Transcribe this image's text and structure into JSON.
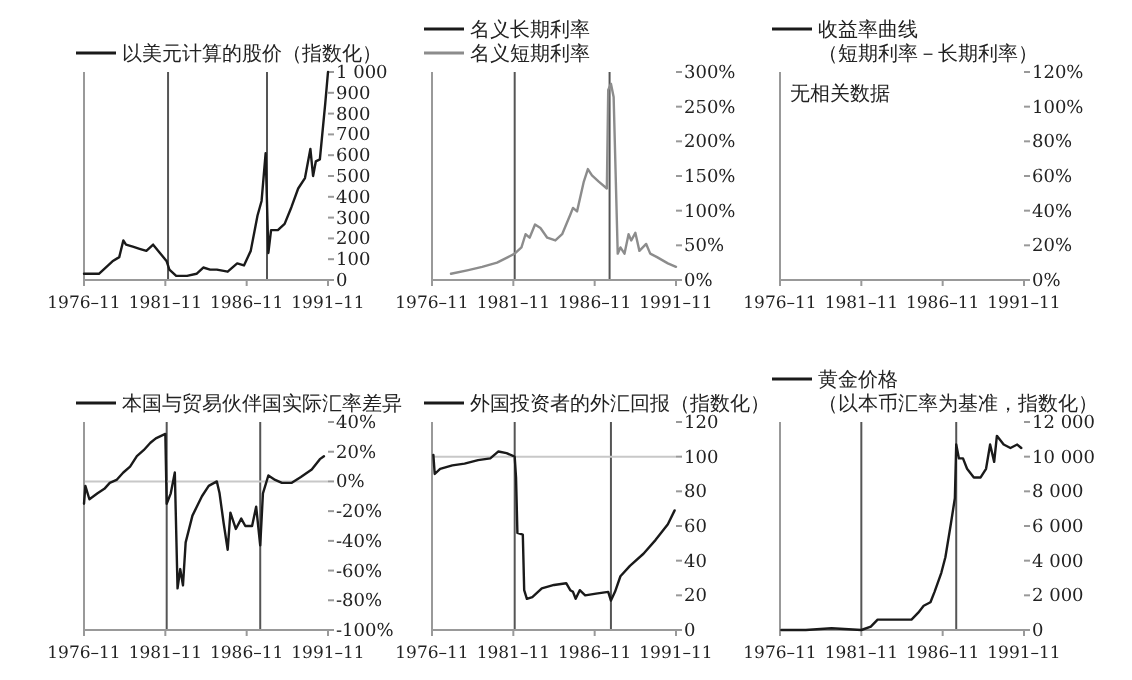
{
  "chart_data": [
    {
      "type": "line",
      "legend": "top",
      "xlim": [
        "1976-11",
        "1991-11"
      ],
      "xticks": [
        {
          "value": "1976-11",
          "label": "1976–11"
        },
        {
          "value": "1981-11",
          "label": "1981–11"
        },
        {
          "value": "1986-11",
          "label": "1986–11"
        },
        {
          "value": "1991-11",
          "label": "1991–11"
        }
      ],
      "ylim": [
        0,
        1000
      ],
      "yticks": [
        0,
        100,
        200,
        300,
        400,
        500,
        600,
        700,
        800,
        900,
        {
          "value": 1000,
          "label": "1 000"
        }
      ],
      "x": [
        "1976-11",
        "1977-10",
        "1978-03",
        "1978-08",
        "1979-01",
        "1979-04",
        "1979-06",
        "1979-11",
        "1980-04",
        "1980-09",
        "1981-02",
        "1981-07",
        "1981-12",
        "1982-02",
        "1982-07",
        "1983-03",
        "1983-10",
        "1984-03",
        "1984-08",
        "1985-01",
        "1985-09",
        "1986-04",
        "1986-09",
        "1987-02",
        "1987-07",
        "1987-10",
        "1988-01",
        "1988-03",
        "1988-05",
        "1988-10",
        "1989-03",
        "1989-08",
        "1990-01",
        "1990-06",
        "1990-10",
        "1990-12",
        "1991-02",
        "1991-05",
        "1991-09",
        "1991-11"
      ],
      "series": [
        {
          "name": "以美元计算的股价（指数化）",
          "color": "#1a1a1a",
          "values": [
            30,
            30,
            60,
            90,
            110,
            190,
            170,
            160,
            150,
            140,
            170,
            130,
            90,
            50,
            20,
            20,
            30,
            60,
            50,
            50,
            40,
            80,
            70,
            140,
            310,
            380,
            610,
            130,
            240,
            240,
            270,
            350,
            440,
            490,
            630,
            500,
            570,
            580,
            850,
            1000
          ]
        }
      ],
      "ref_lines": [
        {
          "axis": "x",
          "value": "1982-01",
          "color": "#555555"
        },
        {
          "axis": "x",
          "value": "1988-02",
          "color": "#555555"
        }
      ]
    },
    {
      "type": "line",
      "legend": "top",
      "xlim": [
        "1976-11",
        "1991-11"
      ],
      "xticks": [
        {
          "value": "1976-11",
          "label": "1976–11"
        },
        {
          "value": "1981-11",
          "label": "1981–11"
        },
        {
          "value": "1986-11",
          "label": "1986–11"
        },
        {
          "value": "1991-11",
          "label": "1991–11"
        }
      ],
      "ylim": [
        0,
        300
      ],
      "yticks": [
        {
          "value": 0,
          "label": "0%"
        },
        {
          "value": 50,
          "label": "50%"
        },
        {
          "value": 100,
          "label": "100%"
        },
        {
          "value": 150,
          "label": "150%"
        },
        {
          "value": 200,
          "label": "200%"
        },
        {
          "value": 250,
          "label": "250%"
        },
        {
          "value": 300,
          "label": "300%"
        }
      ],
      "x": [
        "1978-01",
        "1979-01",
        "1979-12",
        "1980-11",
        "1981-09",
        "1981-12",
        "1982-05",
        "1982-08",
        "1982-11",
        "1983-03",
        "1983-07",
        "1983-12",
        "1984-06",
        "1984-11",
        "1985-05",
        "1985-07",
        "1985-10",
        "1986-03",
        "1986-06",
        "1986-09",
        "1987-02",
        "1987-08",
        "1987-09",
        "1987-11",
        "1988-01",
        "1988-04",
        "1988-06",
        "1988-09",
        "1988-12",
        "1989-02",
        "1989-05",
        "1989-08",
        "1990-01",
        "1990-04",
        "1990-09",
        "1991-05",
        "1991-11"
      ],
      "series": [
        {
          "name": "名义长期利率",
          "color": "#1a1a1a",
          "values": [
            null,
            null,
            null,
            null,
            null,
            null,
            null,
            null,
            null,
            null,
            null,
            null,
            null,
            null,
            null,
            null,
            null,
            null,
            null,
            null,
            null,
            null,
            null,
            null,
            null,
            null,
            null,
            null,
            null,
            null,
            null,
            null,
            null,
            null,
            null,
            null,
            null
          ]
        },
        {
          "name": "名义短期利率",
          "color": "#8c8c8c",
          "values": [
            9,
            14,
            19,
            25,
            35,
            38,
            47,
            66,
            61,
            80,
            75,
            61,
            57,
            66,
            94,
            104,
            99,
            142,
            160,
            151,
            142,
            132,
            274,
            283,
            264,
            38,
            47,
            38,
            66,
            57,
            68,
            42,
            52,
            38,
            33,
            24,
            19
          ]
        }
      ],
      "ref_lines": [
        {
          "axis": "x",
          "value": "1981-12",
          "color": "#555555"
        },
        {
          "axis": "x",
          "value": "1987-10",
          "color": "#555555"
        }
      ]
    },
    {
      "type": "line",
      "legend": "top",
      "categories": [
        "1976–11",
        "1981–11",
        "1986–11",
        "1991–11"
      ],
      "ylim": [
        0,
        120
      ],
      "yticks": [
        {
          "value": 0,
          "label": "0%"
        },
        {
          "value": 20,
          "label": "20%"
        },
        {
          "value": 40,
          "label": "40%"
        },
        {
          "value": 60,
          "label": "60%"
        },
        {
          "value": 80,
          "label": "80%"
        },
        {
          "value": 100,
          "label": "100%"
        },
        {
          "value": 120,
          "label": "120%"
        }
      ],
      "series": [
        {
          "name": "收益率曲线（短期利率－长期利率）",
          "color": "#1a1a1a",
          "values": [
            null,
            null,
            null,
            null
          ]
        }
      ],
      "annotations": [
        "无相关数据"
      ]
    },
    {
      "type": "line",
      "legend": "top",
      "xlim": [
        "1976-11",
        "1991-11"
      ],
      "xticks": [
        {
          "value": "1976-11",
          "label": "1976–11"
        },
        {
          "value": "1981-11",
          "label": "1981–11"
        },
        {
          "value": "1986-11",
          "label": "1986–11"
        },
        {
          "value": "1991-11",
          "label": "1991–11"
        }
      ],
      "ylim": [
        -100,
        40
      ],
      "yticks": [
        {
          "value": -100,
          "label": "-100%"
        },
        {
          "value": -80,
          "label": "-80%"
        },
        {
          "value": -60,
          "label": "-60%"
        },
        {
          "value": -40,
          "label": "-40%"
        },
        {
          "value": -20,
          "label": "-20%"
        },
        {
          "value": 0,
          "label": "0%"
        },
        {
          "value": 20,
          "label": "20%"
        },
        {
          "value": 40,
          "label": "40%"
        }
      ],
      "x": [
        "1976-11",
        "1976-12",
        "1977-03",
        "1977-09",
        "1978-02",
        "1978-06",
        "1978-11",
        "1979-04",
        "1979-09",
        "1980-02",
        "1980-07",
        "1980-12",
        "1981-04",
        "1981-11",
        "1981-12",
        "1982-03",
        "1982-06",
        "1982-08",
        "1982-10",
        "1982-12",
        "1983-02",
        "1983-07",
        "1984-02",
        "1984-07",
        "1985-01",
        "1985-03",
        "1985-06",
        "1985-09",
        "1985-11",
        "1986-03",
        "1986-07",
        "1986-10",
        "1987-03",
        "1987-06",
        "1987-09",
        "1987-11",
        "1988-03",
        "1988-08",
        "1989-01",
        "1989-08",
        "1990-03",
        "1990-11",
        "1991-05",
        "1991-08"
      ],
      "series": [
        {
          "name": "本国与贸易伙伴国实际汇率差异",
          "color": "#1a1a1a",
          "values": [
            -15,
            -3,
            -12,
            -8,
            -5,
            -1,
            1,
            6,
            10,
            17,
            21,
            26,
            29,
            32,
            -15,
            -8,
            6,
            -72,
            -59,
            -70,
            -41,
            -23,
            -10,
            -3,
            0,
            -8,
            -28,
            -46,
            -21,
            -32,
            -25,
            -30,
            -30,
            -17,
            -43,
            -8,
            4,
            1,
            -1,
            -1,
            3,
            8,
            15,
            17
          ]
        }
      ],
      "ref_lines": [
        {
          "axis": "x",
          "value": "1981-12",
          "color": "#555555"
        },
        {
          "axis": "x",
          "value": "1987-09",
          "color": "#555555"
        },
        {
          "axis": "y",
          "value": 0,
          "color": "#c8c8c8"
        }
      ]
    },
    {
      "type": "line",
      "legend": "top",
      "xlim": [
        "1976-11",
        "1991-11"
      ],
      "xticks": [
        {
          "value": "1976-11",
          "label": "1976–11"
        },
        {
          "value": "1981-11",
          "label": "1981–11"
        },
        {
          "value": "1986-11",
          "label": "1986–11"
        },
        {
          "value": "1991-11",
          "label": "1991–11"
        }
      ],
      "ylim": [
        0,
        120
      ],
      "yticks": [
        0,
        20,
        40,
        60,
        80,
        100,
        120
      ],
      "x": [
        "1976-12",
        "1977-01",
        "1977-05",
        "1978-02",
        "1978-11",
        "1979-09",
        "1980-06",
        "1980-12",
        "1981-06",
        "1981-12",
        "1982-01",
        "1982-02",
        "1982-06",
        "1982-07",
        "1982-09",
        "1983-01",
        "1983-08",
        "1984-05",
        "1985-02",
        "1985-05",
        "1985-07",
        "1985-09",
        "1985-12",
        "1986-04",
        "1986-12",
        "1987-09",
        "1987-11",
        "1988-02",
        "1988-06",
        "1989-01",
        "1989-11",
        "1990-08",
        "1991-05",
        "1991-10"
      ],
      "series": [
        {
          "name": "外国投资者的外汇回报（指数化）",
          "color": "#1a1a1a",
          "values": [
            101,
            90,
            93,
            95,
            96,
            98,
            99,
            103,
            102,
            100,
            88,
            56,
            55,
            23,
            18,
            19,
            24,
            26,
            27,
            23,
            22,
            18,
            23,
            20,
            21,
            22,
            17,
            22,
            31,
            37,
            44,
            52,
            61,
            69
          ]
        }
      ],
      "ref_lines": [
        {
          "axis": "x",
          "value": "1981-12",
          "color": "#555555"
        },
        {
          "axis": "x",
          "value": "1987-11",
          "color": "#555555"
        },
        {
          "axis": "y",
          "value": 100,
          "color": "#c8c8c8"
        }
      ]
    },
    {
      "type": "line",
      "legend": "top",
      "xlim": [
        "1976-11",
        "1991-11"
      ],
      "xticks": [
        {
          "value": "1976-11",
          "label": "1976–11"
        },
        {
          "value": "1981-11",
          "label": "1981–11"
        },
        {
          "value": "1986-11",
          "label": "1986–11"
        },
        {
          "value": "1991-11",
          "label": "1991–11"
        }
      ],
      "ylim": [
        0,
        12000
      ],
      "yticks": [
        0,
        {
          "value": 2000,
          "label": "2 000"
        },
        {
          "value": 4000,
          "label": "4 000"
        },
        {
          "value": 6000,
          "label": "6 000"
        },
        {
          "value": 8000,
          "label": "8 000"
        },
        {
          "value": 10000,
          "label": "10 000"
        },
        {
          "value": 12000,
          "label": "12 000"
        }
      ],
      "x": [
        "1976-12",
        "1978-06",
        "1980-01",
        "1981-11",
        "1982-06",
        "1982-11",
        "1983-09",
        "1984-12",
        "1985-05",
        "1985-09",
        "1986-02",
        "1986-05",
        "1986-10",
        "1987-01",
        "1987-05",
        "1987-08",
        "1987-09",
        "1987-11",
        "1988-02",
        "1988-05",
        "1988-10",
        "1989-03",
        "1989-07",
        "1989-10",
        "1990-01",
        "1990-03",
        "1990-08",
        "1991-01",
        "1991-06",
        "1991-09"
      ],
      "series": [
        {
          "name": "黄金价格（以本币汇率为基准，指数化）",
          "color": "#1a1a1a",
          "values": [
            0,
            0,
            100,
            0,
            200,
            600,
            600,
            600,
            1000,
            1400,
            1600,
            2200,
            3300,
            4200,
            6100,
            7600,
            10700,
            9900,
            9900,
            9300,
            8800,
            8800,
            9300,
            10700,
            9700,
            11200,
            10700,
            10500,
            10700,
            10500
          ]
        }
      ],
      "ref_lines": [
        {
          "axis": "x",
          "value": "1981-11",
          "color": "#555555"
        },
        {
          "axis": "x",
          "value": "1987-09",
          "color": "#555555"
        }
      ]
    }
  ]
}
